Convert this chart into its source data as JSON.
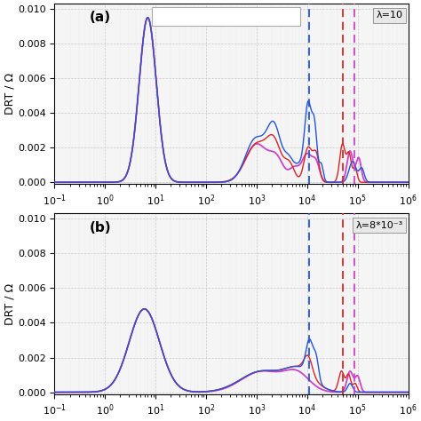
{
  "xlim": [
    0.1,
    1000000.0
  ],
  "ylim_a": [
    -0.0001,
    0.0103
  ],
  "ylim_b": [
    -0.0001,
    0.0103
  ],
  "yticks": [
    0.0,
    0.002,
    0.004,
    0.006,
    0.008,
    0.01
  ],
  "ylabel": "DRT / Ω",
  "label_a": "(a)",
  "label_b": "(b)",
  "lambda_a": "λ=10",
  "lambda_b": "λ=8*10⁻³",
  "color_purple": "#CC44CC",
  "color_blue": "#2255DD",
  "color_red": "#DD2222",
  "dashed_blue_a": 11000.0,
  "dashed_red_a": 52000.0,
  "dashed_purple_a": 85000.0,
  "dashed_blue_b": 11000.0,
  "dashed_red_b": 52000.0,
  "dashed_purple_b": 85000.0,
  "bg_color": "#e8e8e8",
  "grid_color": "#c8c8c8"
}
